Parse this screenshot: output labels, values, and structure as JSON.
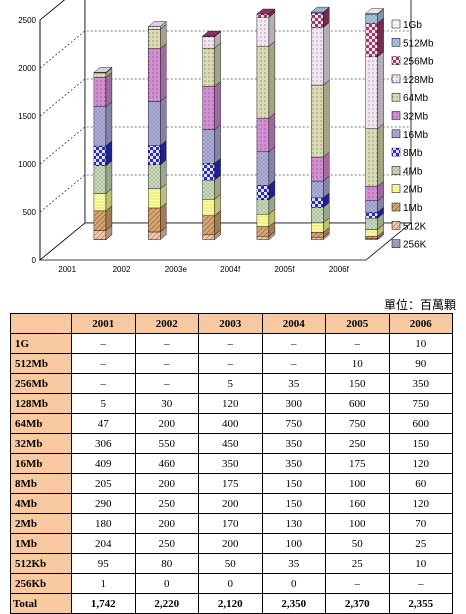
{
  "unit_label": "單位：百萬顆",
  "chart_data": {
    "type": "bar",
    "stacked": true,
    "categories": [
      "2001",
      "2002",
      "2003e",
      "2004f",
      "2005f",
      "2006f"
    ],
    "ylim": [
      0,
      2500
    ],
    "yticks": [
      "0",
      "500",
      "1000",
      "1500",
      "2000",
      "2500"
    ],
    "grid": true,
    "legend_position": "right",
    "series": [
      {
        "name": "256K",
        "values": [
          1,
          0,
          0,
          0,
          0,
          0
        ],
        "color": "#a9a9c6"
      },
      {
        "name": "512K",
        "values": [
          95,
          80,
          50,
          35,
          25,
          10
        ],
        "color": "#f7c7a8"
      },
      {
        "name": "1Mb",
        "values": [
          204,
          250,
          200,
          100,
          50,
          25
        ],
        "color": "#d9a46e"
      },
      {
        "name": "2Mb",
        "values": [
          180,
          200,
          170,
          130,
          100,
          70
        ],
        "color": "#ffff99"
      },
      {
        "name": "4Mb",
        "values": [
          290,
          250,
          200,
          150,
          160,
          120
        ],
        "color": "#ccddbb"
      },
      {
        "name": "8Mb",
        "values": [
          205,
          200,
          175,
          150,
          100,
          60
        ],
        "color": "#2a2ac8"
      },
      {
        "name": "16Mb",
        "values": [
          409,
          460,
          350,
          350,
          175,
          120
        ],
        "color": "#b0b0e0"
      },
      {
        "name": "32Mb",
        "values": [
          306,
          550,
          450,
          350,
          250,
          150
        ],
        "color": "#d48fd4"
      },
      {
        "name": "64Mb",
        "values": [
          47,
          200,
          400,
          750,
          750,
          600
        ],
        "color": "#dadab4"
      },
      {
        "name": "128Mb",
        "values": [
          5,
          30,
          120,
          300,
          600,
          750
        ],
        "color": "#f2e6f2"
      },
      {
        "name": "256Mb",
        "values": [
          0,
          0,
          5,
          35,
          150,
          350
        ],
        "color": "#9a3a6a"
      },
      {
        "name": "512Mb",
        "values": [
          0,
          0,
          0,
          0,
          10,
          90
        ],
        "color": "#aac8e8"
      },
      {
        "name": "1Gb",
        "values": [
          0,
          0,
          0,
          0,
          0,
          10
        ],
        "color": "#ffffff"
      }
    ]
  },
  "table": {
    "headers": [
      "2001",
      "2002",
      "2003",
      "2004",
      "2005",
      "2006"
    ],
    "rows": [
      {
        "label": "1G",
        "cells": [
          "–",
          "–",
          "–",
          "–",
          "–",
          "10"
        ]
      },
      {
        "label": "512Mb",
        "cells": [
          "–",
          "–",
          "–",
          "–",
          "10",
          "90"
        ]
      },
      {
        "label": "256Mb",
        "cells": [
          "–",
          "–",
          "5",
          "35",
          "150",
          "350"
        ]
      },
      {
        "label": "128Mb",
        "cells": [
          "5",
          "30",
          "120",
          "300",
          "600",
          "750"
        ]
      },
      {
        "label": "64Mb",
        "cells": [
          "47",
          "200",
          "400",
          "750",
          "750",
          "600"
        ]
      },
      {
        "label": "32Mb",
        "cells": [
          "306",
          "550",
          "450",
          "350",
          "250",
          "150"
        ]
      },
      {
        "label": "16Mb",
        "cells": [
          "409",
          "460",
          "350",
          "350",
          "175",
          "120"
        ]
      },
      {
        "label": "8Mb",
        "cells": [
          "205",
          "200",
          "175",
          "150",
          "100",
          "60"
        ]
      },
      {
        "label": "4Mb",
        "cells": [
          "290",
          "250",
          "200",
          "150",
          "160",
          "120"
        ]
      },
      {
        "label": "2Mb",
        "cells": [
          "180",
          "200",
          "170",
          "130",
          "100",
          "70"
        ]
      },
      {
        "label": "1Mb",
        "cells": [
          "204",
          "250",
          "200",
          "100",
          "50",
          "25"
        ]
      },
      {
        "label": "512Kb",
        "cells": [
          "95",
          "80",
          "50",
          "35",
          "25",
          "10"
        ]
      },
      {
        "label": "256Kb",
        "cells": [
          "1",
          "0",
          "0",
          "0",
          "–",
          "–"
        ]
      }
    ],
    "total": {
      "label": "Total",
      "cells": [
        "1,742",
        "2,220",
        "2,120",
        "2,350",
        "2,370",
        "2,355"
      ]
    }
  }
}
